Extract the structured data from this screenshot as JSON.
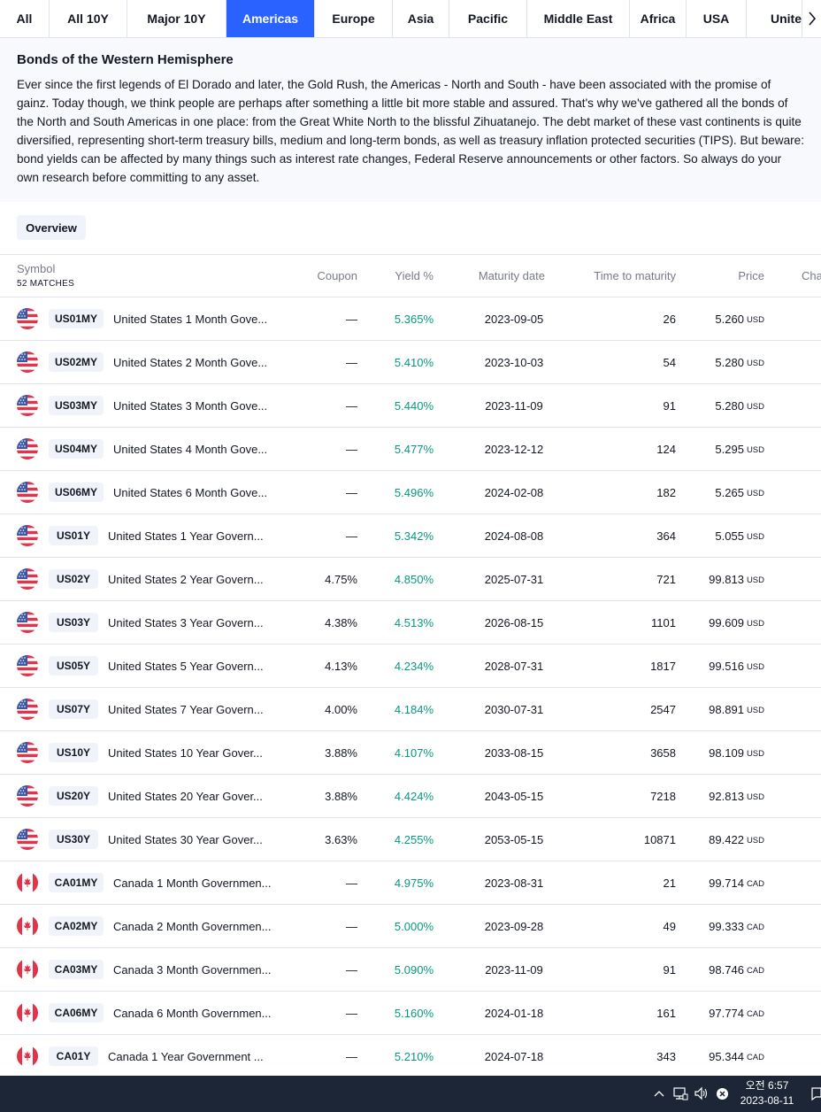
{
  "tabs": [
    "All",
    "All 10Y",
    "Major 10Y",
    "Americas",
    "Europe",
    "Asia",
    "Pacific",
    "Middle East",
    "Africa",
    "USA",
    "Unite"
  ],
  "active_tab": "Americas",
  "colors": {
    "accent": "#2962ff",
    "yield_green": "#089981",
    "taskbar": "#1c2637"
  },
  "description": {
    "title": "Bonds of the Western Hemisphere",
    "text": "Ever since the first legends of El Dorado and later, the Gold Rush, the Americas - North and South - have been associated with the promise of gainz. Today though, we think people are perhaps after something a little bit more stable and assured. That's why we've gathered all the bonds of the North and South Americas in one place: from the Great White North to the blissful Zihuatanejo. The debt market of these vast continents is quite diversified, representing short-term treasury bills, medium and long-term bonds, as well as treasury inflation protected securities (TIPS). But beware: bond yields can be affected by many things such as interest rate changes, Federal Reserve announcements or other factors. So always do your own research before committing to any asset."
  },
  "overview_label": "Overview",
  "table": {
    "headers": {
      "symbol": "Symbol",
      "matches": "52 MATCHES",
      "coupon": "Coupon",
      "yield": "Yield %",
      "maturity": "Maturity date",
      "time": "Time to maturity",
      "price": "Price",
      "change": "Cha"
    },
    "rows": [
      {
        "flag": "us-flag-icon",
        "ticker": "US01MY",
        "name": "United States 1 Month Gove...",
        "coupon": "—",
        "yield": "5.365%",
        "maturity": "2023-09-05",
        "time": "26",
        "price": "5.260",
        "currency": "USD"
      },
      {
        "flag": "us-flag-icon",
        "ticker": "US02MY",
        "name": "United States 2 Month Gove...",
        "coupon": "—",
        "yield": "5.410%",
        "maturity": "2023-10-03",
        "time": "54",
        "price": "5.280",
        "currency": "USD"
      },
      {
        "flag": "us-flag-icon",
        "ticker": "US03MY",
        "name": "United States 3 Month Gove...",
        "coupon": "—",
        "yield": "5.440%",
        "maturity": "2023-11-09",
        "time": "91",
        "price": "5.280",
        "currency": "USD"
      },
      {
        "flag": "us-flag-icon",
        "ticker": "US04MY",
        "name": "United States 4 Month Gove...",
        "coupon": "—",
        "yield": "5.477%",
        "maturity": "2023-12-12",
        "time": "124",
        "price": "5.295",
        "currency": "USD"
      },
      {
        "flag": "us-flag-icon",
        "ticker": "US06MY",
        "name": "United States 6 Month Gove...",
        "coupon": "—",
        "yield": "5.496%",
        "maturity": "2024-02-08",
        "time": "182",
        "price": "5.265",
        "currency": "USD"
      },
      {
        "flag": "us-flag-icon",
        "ticker": "US01Y",
        "name": "United States 1 Year Govern...",
        "coupon": "—",
        "yield": "5.342%",
        "maturity": "2024-08-08",
        "time": "364",
        "price": "5.055",
        "currency": "USD"
      },
      {
        "flag": "us-flag-icon",
        "ticker": "US02Y",
        "name": "United States 2 Year Govern...",
        "coupon": "4.75%",
        "yield": "4.850%",
        "maturity": "2025-07-31",
        "time": "721",
        "price": "99.813",
        "currency": "USD"
      },
      {
        "flag": "us-flag-icon",
        "ticker": "US03Y",
        "name": "United States 3 Year Govern...",
        "coupon": "4.38%",
        "yield": "4.513%",
        "maturity": "2026-08-15",
        "time": "1101",
        "price": "99.609",
        "currency": "USD"
      },
      {
        "flag": "us-flag-icon",
        "ticker": "US05Y",
        "name": "United States 5 Year Govern...",
        "coupon": "4.13%",
        "yield": "4.234%",
        "maturity": "2028-07-31",
        "time": "1817",
        "price": "99.516",
        "currency": "USD"
      },
      {
        "flag": "us-flag-icon",
        "ticker": "US07Y",
        "name": "United States 7 Year Govern...",
        "coupon": "4.00%",
        "yield": "4.184%",
        "maturity": "2030-07-31",
        "time": "2547",
        "price": "98.891",
        "currency": "USD"
      },
      {
        "flag": "us-flag-icon",
        "ticker": "US10Y",
        "name": "United States 10 Year Gover...",
        "coupon": "3.88%",
        "yield": "4.107%",
        "maturity": "2033-08-15",
        "time": "3658",
        "price": "98.109",
        "currency": "USD"
      },
      {
        "flag": "us-flag-icon",
        "ticker": "US20Y",
        "name": "United States 20 Year Gover...",
        "coupon": "3.88%",
        "yield": "4.424%",
        "maturity": "2043-05-15",
        "time": "7218",
        "price": "92.813",
        "currency": "USD"
      },
      {
        "flag": "us-flag-icon",
        "ticker": "US30Y",
        "name": "United States 30 Year Gover...",
        "coupon": "3.63%",
        "yield": "4.255%",
        "maturity": "2053-05-15",
        "time": "10871",
        "price": "89.422",
        "currency": "USD"
      },
      {
        "flag": "ca-flag-icon",
        "ticker": "CA01MY",
        "name": "Canada 1 Month Governmen...",
        "coupon": "—",
        "yield": "4.975%",
        "maturity": "2023-08-31",
        "time": "21",
        "price": "99.714",
        "currency": "CAD"
      },
      {
        "flag": "ca-flag-icon",
        "ticker": "CA02MY",
        "name": "Canada 2 Month Governmen...",
        "coupon": "—",
        "yield": "5.000%",
        "maturity": "2023-09-28",
        "time": "49",
        "price": "99.333",
        "currency": "CAD"
      },
      {
        "flag": "ca-flag-icon",
        "ticker": "CA03MY",
        "name": "Canada 3 Month Governmen...",
        "coupon": "—",
        "yield": "5.090%",
        "maturity": "2023-11-09",
        "time": "91",
        "price": "98.746",
        "currency": "CAD"
      },
      {
        "flag": "ca-flag-icon",
        "ticker": "CA06MY",
        "name": "Canada 6 Month Governmen...",
        "coupon": "—",
        "yield": "5.160%",
        "maturity": "2024-01-18",
        "time": "161",
        "price": "97.774",
        "currency": "CAD"
      },
      {
        "flag": "ca-flag-icon",
        "ticker": "CA01Y",
        "name": "Canada 1 Year Government ...",
        "coupon": "—",
        "yield": "5.210%",
        "maturity": "2024-07-18",
        "time": "343",
        "price": "95.344",
        "currency": "CAD"
      }
    ]
  },
  "taskbar": {
    "time": "오전 6:57",
    "date": "2023-08-11"
  }
}
